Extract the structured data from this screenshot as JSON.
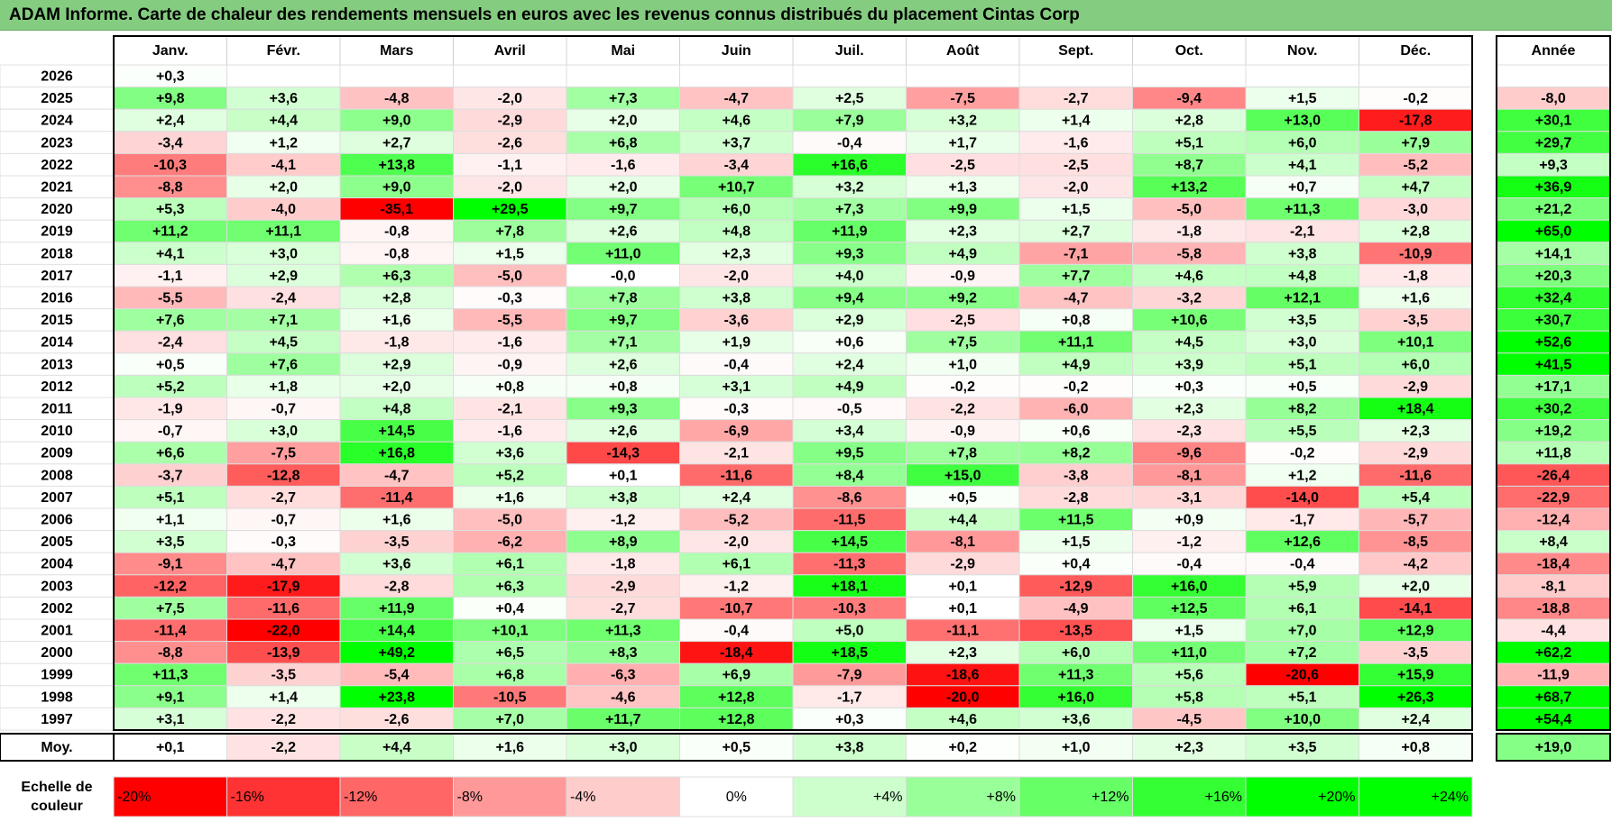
{
  "title": "ADAM Informe. Carte de chaleur des rendements mensuels en euros avec les revenus connus distribués du placement Cintas Corp",
  "colors": {
    "title_bg": "#84cc80",
    "negative_max": "#ff0000",
    "zero": "#ffffff",
    "positive_max": "#00ff00"
  },
  "chart_data": {
    "type": "heatmap",
    "months": [
      "Janv.",
      "Févr.",
      "Mars",
      "Avril",
      "Mai",
      "Juin",
      "Juil.",
      "Août",
      "Sept.",
      "Oct.",
      "Nov.",
      "Déc."
    ],
    "annual_header": "Année",
    "rows": [
      {
        "year": "2026",
        "months": [
          "+0,3",
          "",
          "",
          "",
          "",
          "",
          "",
          "",
          "",
          "",
          "",
          ""
        ],
        "annual": ""
      },
      {
        "year": "2025",
        "months": [
          "+9,8",
          "+3,6",
          "-4,8",
          "-2,0",
          "+7,3",
          "-4,7",
          "+2,5",
          "-7,5",
          "-2,7",
          "-9,4",
          "+1,5",
          "-0,2"
        ],
        "annual": "-8,0"
      },
      {
        "year": "2024",
        "months": [
          "+2,4",
          "+4,4",
          "+9,0",
          "-2,9",
          "+2,0",
          "+4,6",
          "+7,9",
          "+3,2",
          "+1,4",
          "+2,8",
          "+13,0",
          "-17,8"
        ],
        "annual": "+30,1"
      },
      {
        "year": "2023",
        "months": [
          "-3,4",
          "+1,2",
          "+2,7",
          "-2,6",
          "+6,8",
          "+3,7",
          "-0,4",
          "+1,7",
          "-1,6",
          "+5,1",
          "+6,0",
          "+7,9"
        ],
        "annual": "+29,7"
      },
      {
        "year": "2022",
        "months": [
          "-10,3",
          "-4,1",
          "+13,8",
          "-1,1",
          "-1,6",
          "-3,4",
          "+16,6",
          "-2,5",
          "-2,5",
          "+8,7",
          "+4,1",
          "-5,2"
        ],
        "annual": "+9,3"
      },
      {
        "year": "2021",
        "months": [
          "-8,8",
          "+2,0",
          "+9,0",
          "-2,0",
          "+2,0",
          "+10,7",
          "+3,2",
          "+1,3",
          "-2,0",
          "+13,2",
          "+0,7",
          "+4,7"
        ],
        "annual": "+36,9"
      },
      {
        "year": "2020",
        "months": [
          "+5,3",
          "-4,0",
          "-35,1",
          "+29,5",
          "+9,7",
          "+6,0",
          "+7,3",
          "+9,9",
          "+1,5",
          "-5,0",
          "+11,3",
          "-3,0"
        ],
        "annual": "+21,2"
      },
      {
        "year": "2019",
        "months": [
          "+11,2",
          "+11,1",
          "-0,8",
          "+7,8",
          "+2,6",
          "+4,8",
          "+11,9",
          "+2,3",
          "+2,7",
          "-1,8",
          "-2,1",
          "+2,8"
        ],
        "annual": "+65,0"
      },
      {
        "year": "2018",
        "months": [
          "+4,1",
          "+3,0",
          "-0,8",
          "+1,5",
          "+11,0",
          "+2,3",
          "+9,3",
          "+4,9",
          "-7,1",
          "-5,8",
          "+3,8",
          "-10,9"
        ],
        "annual": "+14,1"
      },
      {
        "year": "2017",
        "months": [
          "-1,1",
          "+2,9",
          "+6,3",
          "-5,0",
          "-0,0",
          "-2,0",
          "+4,0",
          "-0,9",
          "+7,7",
          "+4,6",
          "+4,8",
          "-1,8"
        ],
        "annual": "+20,3"
      },
      {
        "year": "2016",
        "months": [
          "-5,5",
          "-2,4",
          "+2,8",
          "-0,3",
          "+7,8",
          "+3,8",
          "+9,4",
          "+9,2",
          "-4,7",
          "-3,2",
          "+12,1",
          "+1,6"
        ],
        "annual": "+32,4"
      },
      {
        "year": "2015",
        "months": [
          "+7,6",
          "+7,1",
          "+1,6",
          "-5,5",
          "+9,7",
          "-3,6",
          "+2,9",
          "-2,5",
          "+0,8",
          "+10,6",
          "+3,5",
          "-3,5"
        ],
        "annual": "+30,7"
      },
      {
        "year": "2014",
        "months": [
          "-2,4",
          "+4,5",
          "-1,8",
          "-1,6",
          "+7,1",
          "+1,9",
          "+0,6",
          "+7,5",
          "+11,1",
          "+4,5",
          "+3,0",
          "+10,1"
        ],
        "annual": "+52,6"
      },
      {
        "year": "2013",
        "months": [
          "+0,5",
          "+7,6",
          "+2,9",
          "-0,9",
          "+2,6",
          "-0,4",
          "+2,4",
          "+1,0",
          "+4,9",
          "+3,9",
          "+5,1",
          "+6,0"
        ],
        "annual": "+41,5"
      },
      {
        "year": "2012",
        "months": [
          "+5,2",
          "+1,8",
          "+2,0",
          "+0,8",
          "+0,8",
          "+3,1",
          "+4,9",
          "-0,2",
          "-0,2",
          "+0,3",
          "+0,5",
          "-2,9"
        ],
        "annual": "+17,1"
      },
      {
        "year": "2011",
        "months": [
          "-1,9",
          "-0,7",
          "+4,8",
          "-2,1",
          "+9,3",
          "-0,3",
          "-0,5",
          "-2,2",
          "-6,0",
          "+2,3",
          "+8,2",
          "+18,4"
        ],
        "annual": "+30,2"
      },
      {
        "year": "2010",
        "months": [
          "-0,7",
          "+3,0",
          "+14,5",
          "-1,6",
          "+2,6",
          "-6,9",
          "+3,4",
          "-0,9",
          "+0,6",
          "-2,3",
          "+5,5",
          "+2,3"
        ],
        "annual": "+19,2"
      },
      {
        "year": "2009",
        "months": [
          "+6,6",
          "-7,5",
          "+16,8",
          "+3,6",
          "-14,3",
          "-2,1",
          "+9,5",
          "+7,8",
          "+8,2",
          "-9,6",
          "-0,2",
          "-2,9"
        ],
        "annual": "+11,8"
      },
      {
        "year": "2008",
        "months": [
          "-3,7",
          "-12,8",
          "-4,7",
          "+5,2",
          "+0,1",
          "-11,6",
          "+8,4",
          "+15,0",
          "-3,8",
          "-8,1",
          "+1,2",
          "-11,6"
        ],
        "annual": "-26,4"
      },
      {
        "year": "2007",
        "months": [
          "+5,1",
          "-2,7",
          "-11,4",
          "+1,6",
          "+3,8",
          "+2,4",
          "-8,6",
          "+0,5",
          "-2,8",
          "-3,1",
          "-14,0",
          "+5,4"
        ],
        "annual": "-22,9"
      },
      {
        "year": "2006",
        "months": [
          "+1,1",
          "-0,7",
          "+1,6",
          "-5,0",
          "-1,2",
          "-5,2",
          "-11,5",
          "+4,4",
          "+11,5",
          "+0,9",
          "-1,7",
          "-5,7"
        ],
        "annual": "-12,4"
      },
      {
        "year": "2005",
        "months": [
          "+3,5",
          "-0,3",
          "-3,5",
          "-6,2",
          "+8,9",
          "-2,0",
          "+14,5",
          "-8,1",
          "+1,5",
          "-1,2",
          "+12,6",
          "-8,5"
        ],
        "annual": "+8,4"
      },
      {
        "year": "2004",
        "months": [
          "-9,1",
          "-4,7",
          "+3,6",
          "+6,1",
          "-1,8",
          "+6,1",
          "-11,3",
          "-2,9",
          "+0,4",
          "-0,4",
          "-0,4",
          "-4,2"
        ],
        "annual": "-18,4"
      },
      {
        "year": "2003",
        "months": [
          "-12,2",
          "-17,9",
          "-2,8",
          "+6,3",
          "-2,9",
          "-1,2",
          "+18,1",
          "+0,1",
          "-12,9",
          "+16,0",
          "+5,9",
          "+2,0"
        ],
        "annual": "-8,1"
      },
      {
        "year": "2002",
        "months": [
          "+7,5",
          "-11,6",
          "+11,9",
          "+0,4",
          "-2,7",
          "-10,7",
          "-10,3",
          "+0,1",
          "-4,9",
          "+12,5",
          "+6,1",
          "-14,1"
        ],
        "annual": "-18,8"
      },
      {
        "year": "2001",
        "months": [
          "-11,4",
          "-22,0",
          "+14,4",
          "+10,1",
          "+11,3",
          "-0,4",
          "+5,0",
          "-11,1",
          "-13,5",
          "+1,5",
          "+7,0",
          "+12,9"
        ],
        "annual": "-4,4"
      },
      {
        "year": "2000",
        "months": [
          "-8,8",
          "-13,9",
          "+49,2",
          "+6,5",
          "+8,3",
          "-18,4",
          "+18,5",
          "+2,3",
          "+6,0",
          "+11,0",
          "+7,2",
          "-3,5"
        ],
        "annual": "+62,2"
      },
      {
        "year": "1999",
        "months": [
          "+11,3",
          "-3,5",
          "-5,4",
          "+6,8",
          "-6,3",
          "+6,9",
          "-7,9",
          "-18,6",
          "+11,3",
          "+5,6",
          "-20,6",
          "+15,9"
        ],
        "annual": "-11,9"
      },
      {
        "year": "1998",
        "months": [
          "+9,1",
          "+1,4",
          "+23,8",
          "-10,5",
          "-4,6",
          "+12,8",
          "-1,7",
          "-20,0",
          "+16,0",
          "+5,8",
          "+5,1",
          "+26,3"
        ],
        "annual": "+68,7"
      },
      {
        "year": "1997",
        "months": [
          "+3,1",
          "-2,2",
          "-2,6",
          "+7,0",
          "+11,7",
          "+12,8",
          "+0,3",
          "+4,6",
          "+3,6",
          "-4,5",
          "+10,0",
          "+2,4"
        ],
        "annual": "+54,4"
      }
    ],
    "average": {
      "label": "Moy.",
      "months": [
        "+0,1",
        "-2,2",
        "+4,4",
        "+1,6",
        "+3,0",
        "+0,5",
        "+3,8",
        "+0,2",
        "+1,0",
        "+2,3",
        "+3,5",
        "+0,8"
      ],
      "annual": "+19,0"
    },
    "scale": {
      "label": "Echelle de couleur",
      "stops": [
        "-20%",
        "-16%",
        "-12%",
        "-8%",
        "-4%",
        "0%",
        "+4%",
        "+8%",
        "+12%",
        "+16%",
        "+20%",
        "+24%"
      ]
    }
  }
}
